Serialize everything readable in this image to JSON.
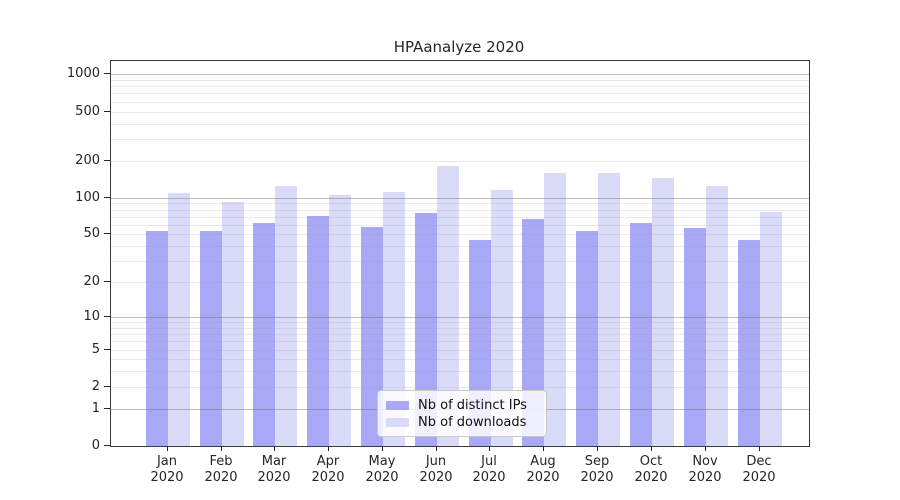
{
  "title": "HPAanalyze 2020",
  "chart_data": {
    "type": "bar",
    "title": "HPAanalyze 2020",
    "categories": [
      "Jan",
      "Feb",
      "Mar",
      "Apr",
      "May",
      "Jun",
      "Jul",
      "Aug",
      "Sep",
      "Oct",
      "Nov",
      "Dec"
    ],
    "category_year": "2020",
    "series": [
      {
        "name": "Nb of distinct IPs",
        "color": "#a8a8f6",
        "values": [
          53,
          53,
          62,
          71,
          58,
          75,
          45,
          67,
          53,
          62,
          57,
          45
        ]
      },
      {
        "name": "Nb of downloads",
        "color": "#dadaf9",
        "values": [
          110,
          92,
          125,
          106,
          111,
          180,
          115,
          158,
          160,
          146,
          124,
          77
        ]
      }
    ],
    "yscale": "symlog",
    "yticks": [
      0,
      1,
      2,
      5,
      10,
      20,
      50,
      100,
      200,
      500,
      1000
    ],
    "ylim": [
      0,
      1150
    ],
    "grid": true,
    "legend_position": "lower center",
    "colors": {
      "grid_minor": "#e9e9e9",
      "grid_decade": "#b6b6b6",
      "axis": "#262626",
      "background": "#ffffff"
    }
  }
}
